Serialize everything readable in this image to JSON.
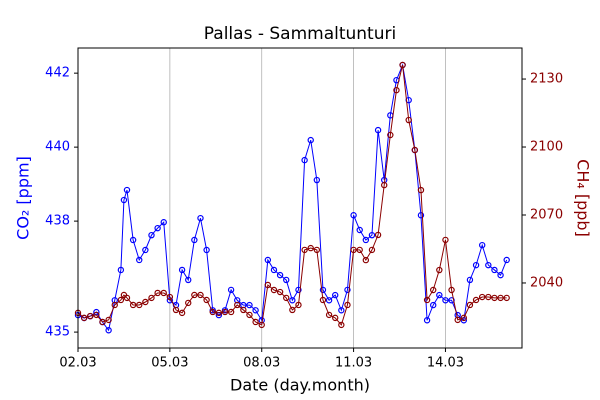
{
  "chart_data": {
    "type": "line",
    "title": "Pallas - Sammaltunturi",
    "xlabel": "Date (day.month)",
    "ylabel": "CO₂ [ppm]",
    "y2label": "CH₄ [ppb]",
    "grid": "x",
    "x": [
      2.0,
      2.2,
      2.4,
      2.6,
      2.8,
      3.0,
      3.2,
      3.4,
      3.5,
      3.6,
      3.8,
      4.0,
      4.2,
      4.4,
      4.6,
      4.8,
      5.0,
      5.2,
      5.4,
      5.6,
      5.8,
      6.0,
      6.2,
      6.4,
      6.6,
      6.8,
      7.0,
      7.2,
      7.4,
      7.6,
      7.8,
      8.0,
      8.2,
      8.4,
      8.6,
      8.8,
      9.0,
      9.2,
      9.4,
      9.6,
      9.8,
      10.0,
      10.2,
      10.4,
      10.6,
      10.8,
      11.0,
      11.2,
      11.4,
      11.6,
      11.8,
      12.0,
      12.2,
      12.4,
      12.6,
      12.8,
      13.0,
      13.2,
      13.4,
      13.6,
      13.8,
      14.0,
      14.2,
      14.4,
      14.6,
      14.8,
      15.0,
      15.2,
      15.4,
      15.6,
      15.8,
      16.0
    ],
    "xlim": [
      2,
      16.5
    ],
    "xticks": [
      {
        "value": 2,
        "label": "02.03"
      },
      {
        "value": 5,
        "label": "05.03"
      },
      {
        "value": 8,
        "label": "08.03"
      },
      {
        "value": 11,
        "label": "11.03"
      },
      {
        "value": 14,
        "label": "14.03"
      }
    ],
    "ylim": [
      434.57,
      442.68
    ],
    "yticks": [
      435,
      438,
      440,
      442
    ],
    "y2lim": [
      2011.3,
      2143.7
    ],
    "y2ticks": [
      2040,
      2070,
      2100,
      2130
    ],
    "series": [
      {
        "name": "CO₂",
        "color": "#0000ff",
        "axis": "y",
        "values": [
          435.46,
          435.38,
          435.43,
          435.54,
          435.27,
          435.05,
          435.86,
          436.68,
          438.57,
          438.84,
          437.49,
          436.95,
          437.22,
          437.62,
          437.81,
          437.97,
          435.86,
          435.73,
          436.68,
          436.41,
          437.49,
          438.08,
          437.22,
          435.59,
          435.46,
          435.59,
          436.14,
          435.86,
          435.73,
          435.73,
          435.59,
          435.32,
          436.95,
          436.68,
          436.54,
          436.41,
          435.86,
          436.14,
          439.65,
          440.19,
          439.11,
          436.14,
          435.86,
          436.0,
          435.59,
          436.14,
          438.16,
          437.76,
          437.49,
          437.62,
          440.46,
          439.11,
          440.86,
          441.81,
          442.22,
          441.27,
          439.92,
          438.16,
          435.32,
          435.73,
          436.0,
          435.86,
          435.86,
          435.46,
          435.32,
          436.41,
          436.81,
          437.35,
          436.81,
          436.68,
          436.54,
          436.95
        ]
      },
      {
        "name": "CH₄",
        "color": "#8b0000",
        "axis": "y2",
        "values": [
          2026.8,
          2024.6,
          2025.4,
          2025.9,
          2022.8,
          2023.7,
          2030.3,
          2032.5,
          2034.7,
          2033.4,
          2030.3,
          2030.3,
          2031.6,
          2033.4,
          2035.6,
          2035.6,
          2033.8,
          2028.1,
          2026.8,
          2031.2,
          2034.7,
          2034.7,
          2032.5,
          2027.2,
          2026.8,
          2027.2,
          2027.2,
          2030.3,
          2028.1,
          2025.9,
          2022.8,
          2021.5,
          2039.1,
          2036.9,
          2036.0,
          2033.4,
          2028.1,
          2030.3,
          2054.6,
          2055.4,
          2054.6,
          2032.5,
          2025.9,
          2024.6,
          2021.5,
          2030.3,
          2054.6,
          2054.6,
          2050.1,
          2054.6,
          2061.2,
          2083.2,
          2105.3,
          2125.1,
          2136.2,
          2111.9,
          2098.7,
          2081.0,
          2032.5,
          2036.9,
          2045.7,
          2059.0,
          2036.9,
          2023.7,
          2024.6,
          2030.3,
          2032.5,
          2033.8,
          2033.8,
          2033.4,
          2033.4,
          2033.4
        ]
      }
    ]
  }
}
